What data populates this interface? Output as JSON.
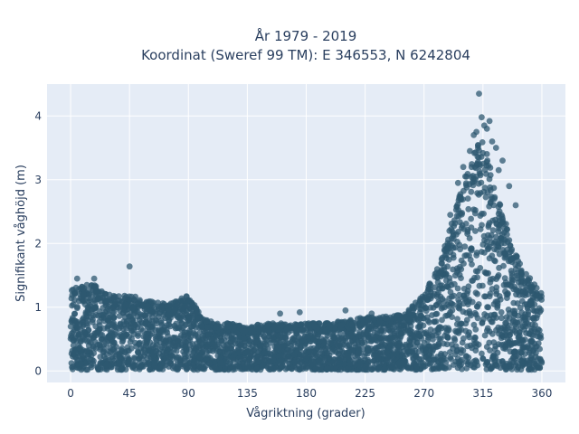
{
  "chart_data": {
    "type": "scatter",
    "title_line1": "År 1979 - 2019",
    "title_line2": "Koordinat (Sweref 99 TM): E 346553, N 6242804",
    "xlabel": "Vågriktning (grader)",
    "ylabel": "Signifikant våghöjd (m)",
    "xlim": [
      -18,
      378
    ],
    "ylim": [
      -0.18,
      4.5
    ],
    "xticks": [
      0,
      45,
      90,
      135,
      180,
      225,
      270,
      315,
      360
    ],
    "yticks": [
      0,
      1,
      2,
      3,
      4
    ],
    "grid": true,
    "legend": "none",
    "colors": {
      "marker": "#2e5870",
      "plot_bg": "#e5ecf6",
      "grid": "#ffffff",
      "text": "#2a3f5f"
    },
    "envelope": {
      "x": [
        0,
        10,
        20,
        30,
        45,
        60,
        75,
        90,
        100,
        110,
        120,
        135,
        150,
        165,
        180,
        195,
        210,
        225,
        240,
        255,
        265,
        275,
        285,
        295,
        305,
        315,
        325,
        335,
        345,
        355,
        360
      ],
      "y_max": [
        1.3,
        1.35,
        1.35,
        1.2,
        1.2,
        1.1,
        1.05,
        1.2,
        0.85,
        0.75,
        0.75,
        0.7,
        0.75,
        0.75,
        0.75,
        0.75,
        0.8,
        0.85,
        0.85,
        0.9,
        1.1,
        1.4,
        1.9,
        2.6,
        3.3,
        3.7,
        2.8,
        2.2,
        1.6,
        1.4,
        1.2
      ]
    },
    "outliers": {
      "x": [
        312,
        314,
        320,
        316,
        318,
        310,
        308,
        325,
        330,
        340,
        45,
        18,
        5,
        290,
        300,
        322,
        327,
        335,
        305,
        296,
        175,
        160,
        210,
        230
      ],
      "y": [
        4.35,
        3.98,
        3.92,
        3.85,
        3.8,
        3.75,
        3.7,
        3.5,
        3.3,
        2.6,
        1.64,
        1.45,
        1.45,
        2.45,
        3.2,
        3.6,
        3.15,
        2.9,
        3.45,
        2.95,
        0.92,
        0.9,
        0.95,
        0.9
      ]
    }
  }
}
